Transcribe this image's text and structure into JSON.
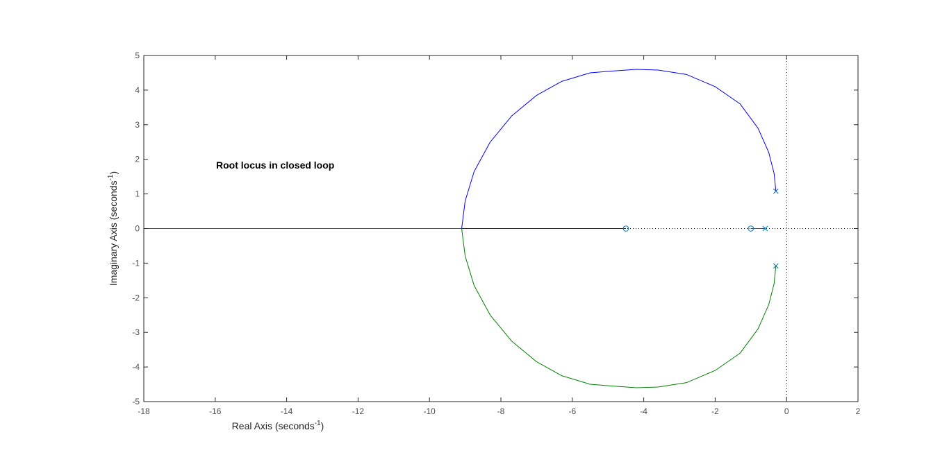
{
  "chart_data": {
    "type": "line",
    "subtype": "root-locus",
    "annotation": "Root locus in closed loop",
    "xlabel": {
      "text": "Real Axis (seconds",
      "sup": "-1",
      "close": ")"
    },
    "ylabel": {
      "text": "Imaginary Axis (seconds",
      "sup": "-1",
      "close": ")"
    },
    "xlim": [
      -18,
      2
    ],
    "ylim": [
      -5,
      5
    ],
    "xticks": [
      -18,
      -16,
      -14,
      -12,
      -10,
      -8,
      -6,
      -4,
      -2,
      0,
      2
    ],
    "yticks": [
      -5,
      -4,
      -3,
      -2,
      -1,
      0,
      1,
      2,
      3,
      4,
      5
    ],
    "grid": false,
    "box": true,
    "reference_lines": [
      {
        "orientation": "horizontal",
        "value": 0,
        "style": "dotted",
        "color": "#000000"
      },
      {
        "orientation": "vertical",
        "value": 0,
        "style": "dotted",
        "color": "#000000"
      }
    ],
    "series": [
      {
        "color": "#0000ff",
        "points": [
          [
            -0.3,
            1.08
          ],
          [
            -0.35,
            1.6
          ],
          [
            -0.5,
            2.2
          ],
          [
            -0.8,
            2.9
          ],
          [
            -1.3,
            3.6
          ],
          [
            -2.0,
            4.1
          ],
          [
            -2.8,
            4.45
          ],
          [
            -3.6,
            4.58
          ],
          [
            -4.2,
            4.6
          ],
          [
            -4.9,
            4.55
          ],
          [
            -5.5,
            4.5
          ],
          [
            -6.3,
            4.25
          ],
          [
            -7.0,
            3.85
          ],
          [
            -7.7,
            3.25
          ],
          [
            -8.3,
            2.5
          ],
          [
            -8.75,
            1.65
          ],
          [
            -9.0,
            0.8
          ],
          [
            -9.1,
            0.0
          ],
          [
            -7.0,
            0.0
          ],
          [
            -4.5,
            0.0
          ]
        ]
      },
      {
        "color": "#008000",
        "points": [
          [
            -0.3,
            -1.08
          ],
          [
            -0.35,
            -1.6
          ],
          [
            -0.5,
            -2.2
          ],
          [
            -0.8,
            -2.9
          ],
          [
            -1.3,
            -3.6
          ],
          [
            -2.0,
            -4.1
          ],
          [
            -2.8,
            -4.45
          ],
          [
            -3.6,
            -4.58
          ],
          [
            -4.2,
            -4.6
          ],
          [
            -4.9,
            -4.55
          ],
          [
            -5.5,
            -4.5
          ],
          [
            -6.3,
            -4.25
          ],
          [
            -7.0,
            -3.85
          ],
          [
            -7.7,
            -3.25
          ],
          [
            -8.3,
            -2.5
          ],
          [
            -8.75,
            -1.65
          ],
          [
            -9.0,
            -0.8
          ],
          [
            -9.1,
            0.0
          ],
          [
            -13.0,
            0.0
          ],
          [
            -18.0,
            0.0
          ]
        ]
      },
      {
        "color": "#ff0000",
        "points": [
          [
            -0.6,
            0.0
          ],
          [
            -1.0,
            0.0
          ]
        ]
      }
    ],
    "poles": [
      [
        -0.3,
        1.08
      ],
      [
        -0.3,
        -1.08
      ],
      [
        -0.6,
        0.0
      ]
    ],
    "zeros": [
      [
        -4.5,
        0.0
      ],
      [
        -1.0,
        0.0
      ]
    ],
    "marker_color": "#0072bd"
  }
}
